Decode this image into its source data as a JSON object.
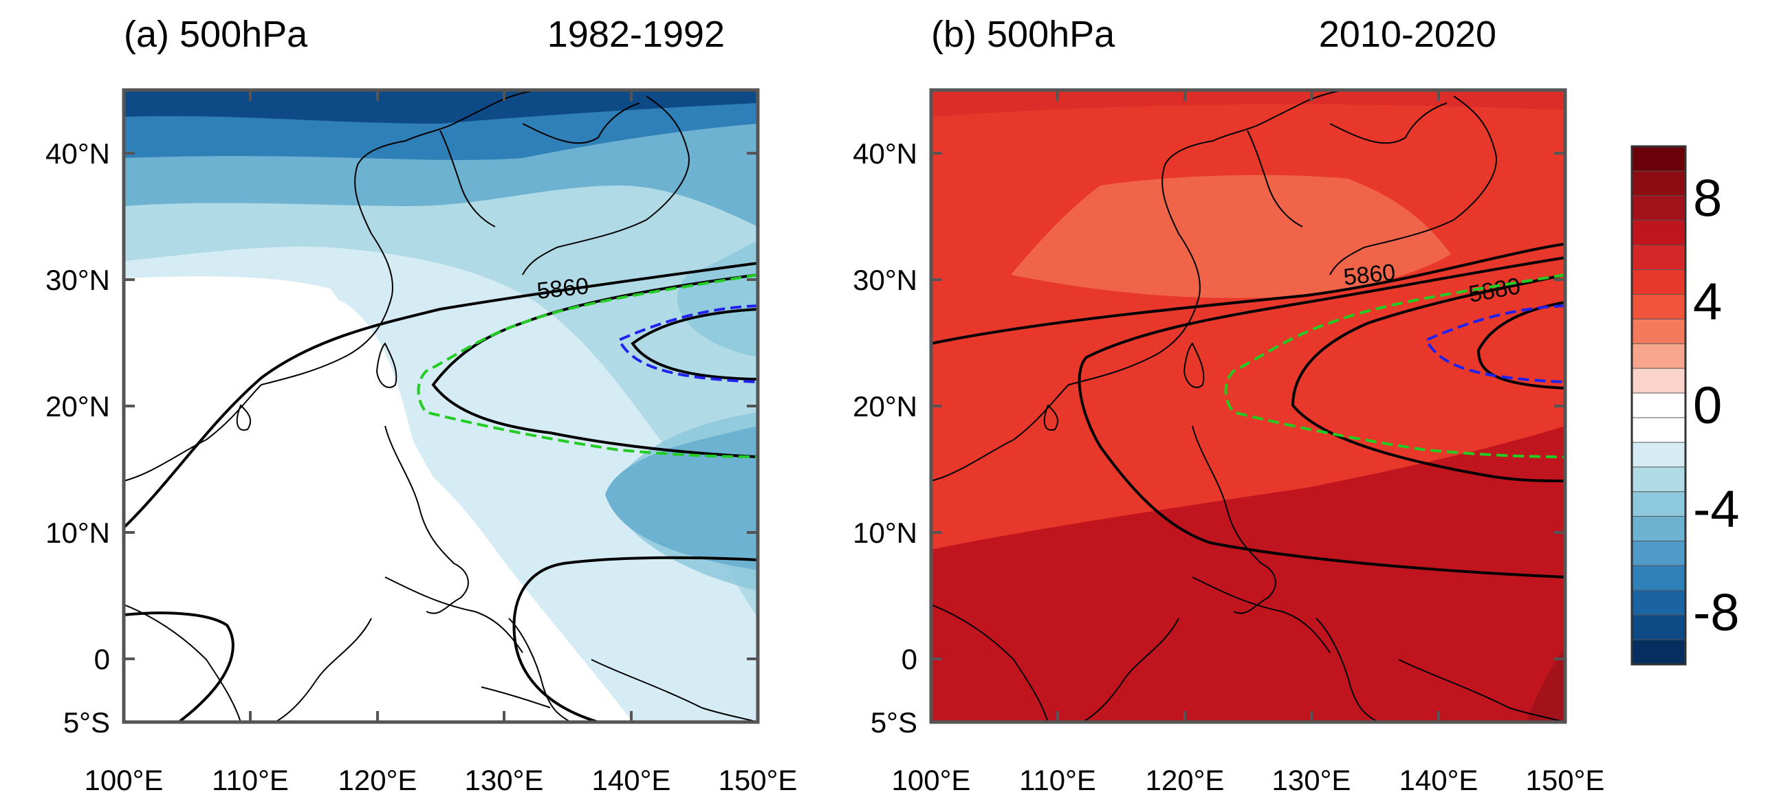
{
  "panels": [
    {
      "id": "a",
      "title_left": "(a) 500hPa",
      "title_right": "1982-1992",
      "contour_label": "5860",
      "fill_levels": [
        "light-blue",
        "blue",
        "dark-blue"
      ]
    },
    {
      "id": "b",
      "title_left": "(b) 500hPa",
      "title_right": "2010-2020",
      "contour_labels": [
        "5860",
        "5880"
      ],
      "fill_levels": [
        "salmon",
        "red",
        "dark-red"
      ]
    }
  ],
  "axes": {
    "lat_ticks": [
      "40°N",
      "30°N",
      "20°N",
      "10°N",
      "0",
      "5°S"
    ],
    "lat_values": [
      40,
      30,
      20,
      10,
      0,
      -5
    ],
    "lon_ticks": [
      "100°E",
      "110°E",
      "120°E",
      "130°E",
      "140°E",
      "150°E"
    ],
    "lon_values": [
      100,
      110,
      120,
      130,
      140,
      150
    ],
    "lat_range": [
      -5,
      45
    ],
    "lon_range": [
      100,
      150
    ]
  },
  "colorbar": {
    "labels": [
      "8",
      "4",
      "0",
      "-4",
      "-8"
    ],
    "label_values": [
      8,
      4,
      0,
      -4,
      -8
    ],
    "range": [
      -10,
      10
    ],
    "colors": [
      "#6a0008",
      "#8c0c12",
      "#a3111a",
      "#c0151f",
      "#d62728",
      "#e8382b",
      "#f0543b",
      "#f47a5e",
      "#f8a58e",
      "#fbd3cb",
      "#ffffff",
      "#ffffff",
      "#d6ecf4",
      "#b0dbe6",
      "#8ec8dc",
      "#6eb2d2",
      "#4f9ac6",
      "#2f7fb8",
      "#1a64a3",
      "#0d4a86",
      "#062f60"
    ]
  },
  "styling": {
    "green_dash": "#22cc22",
    "blue_dash": "#2222ee",
    "contour": "#000000"
  }
}
